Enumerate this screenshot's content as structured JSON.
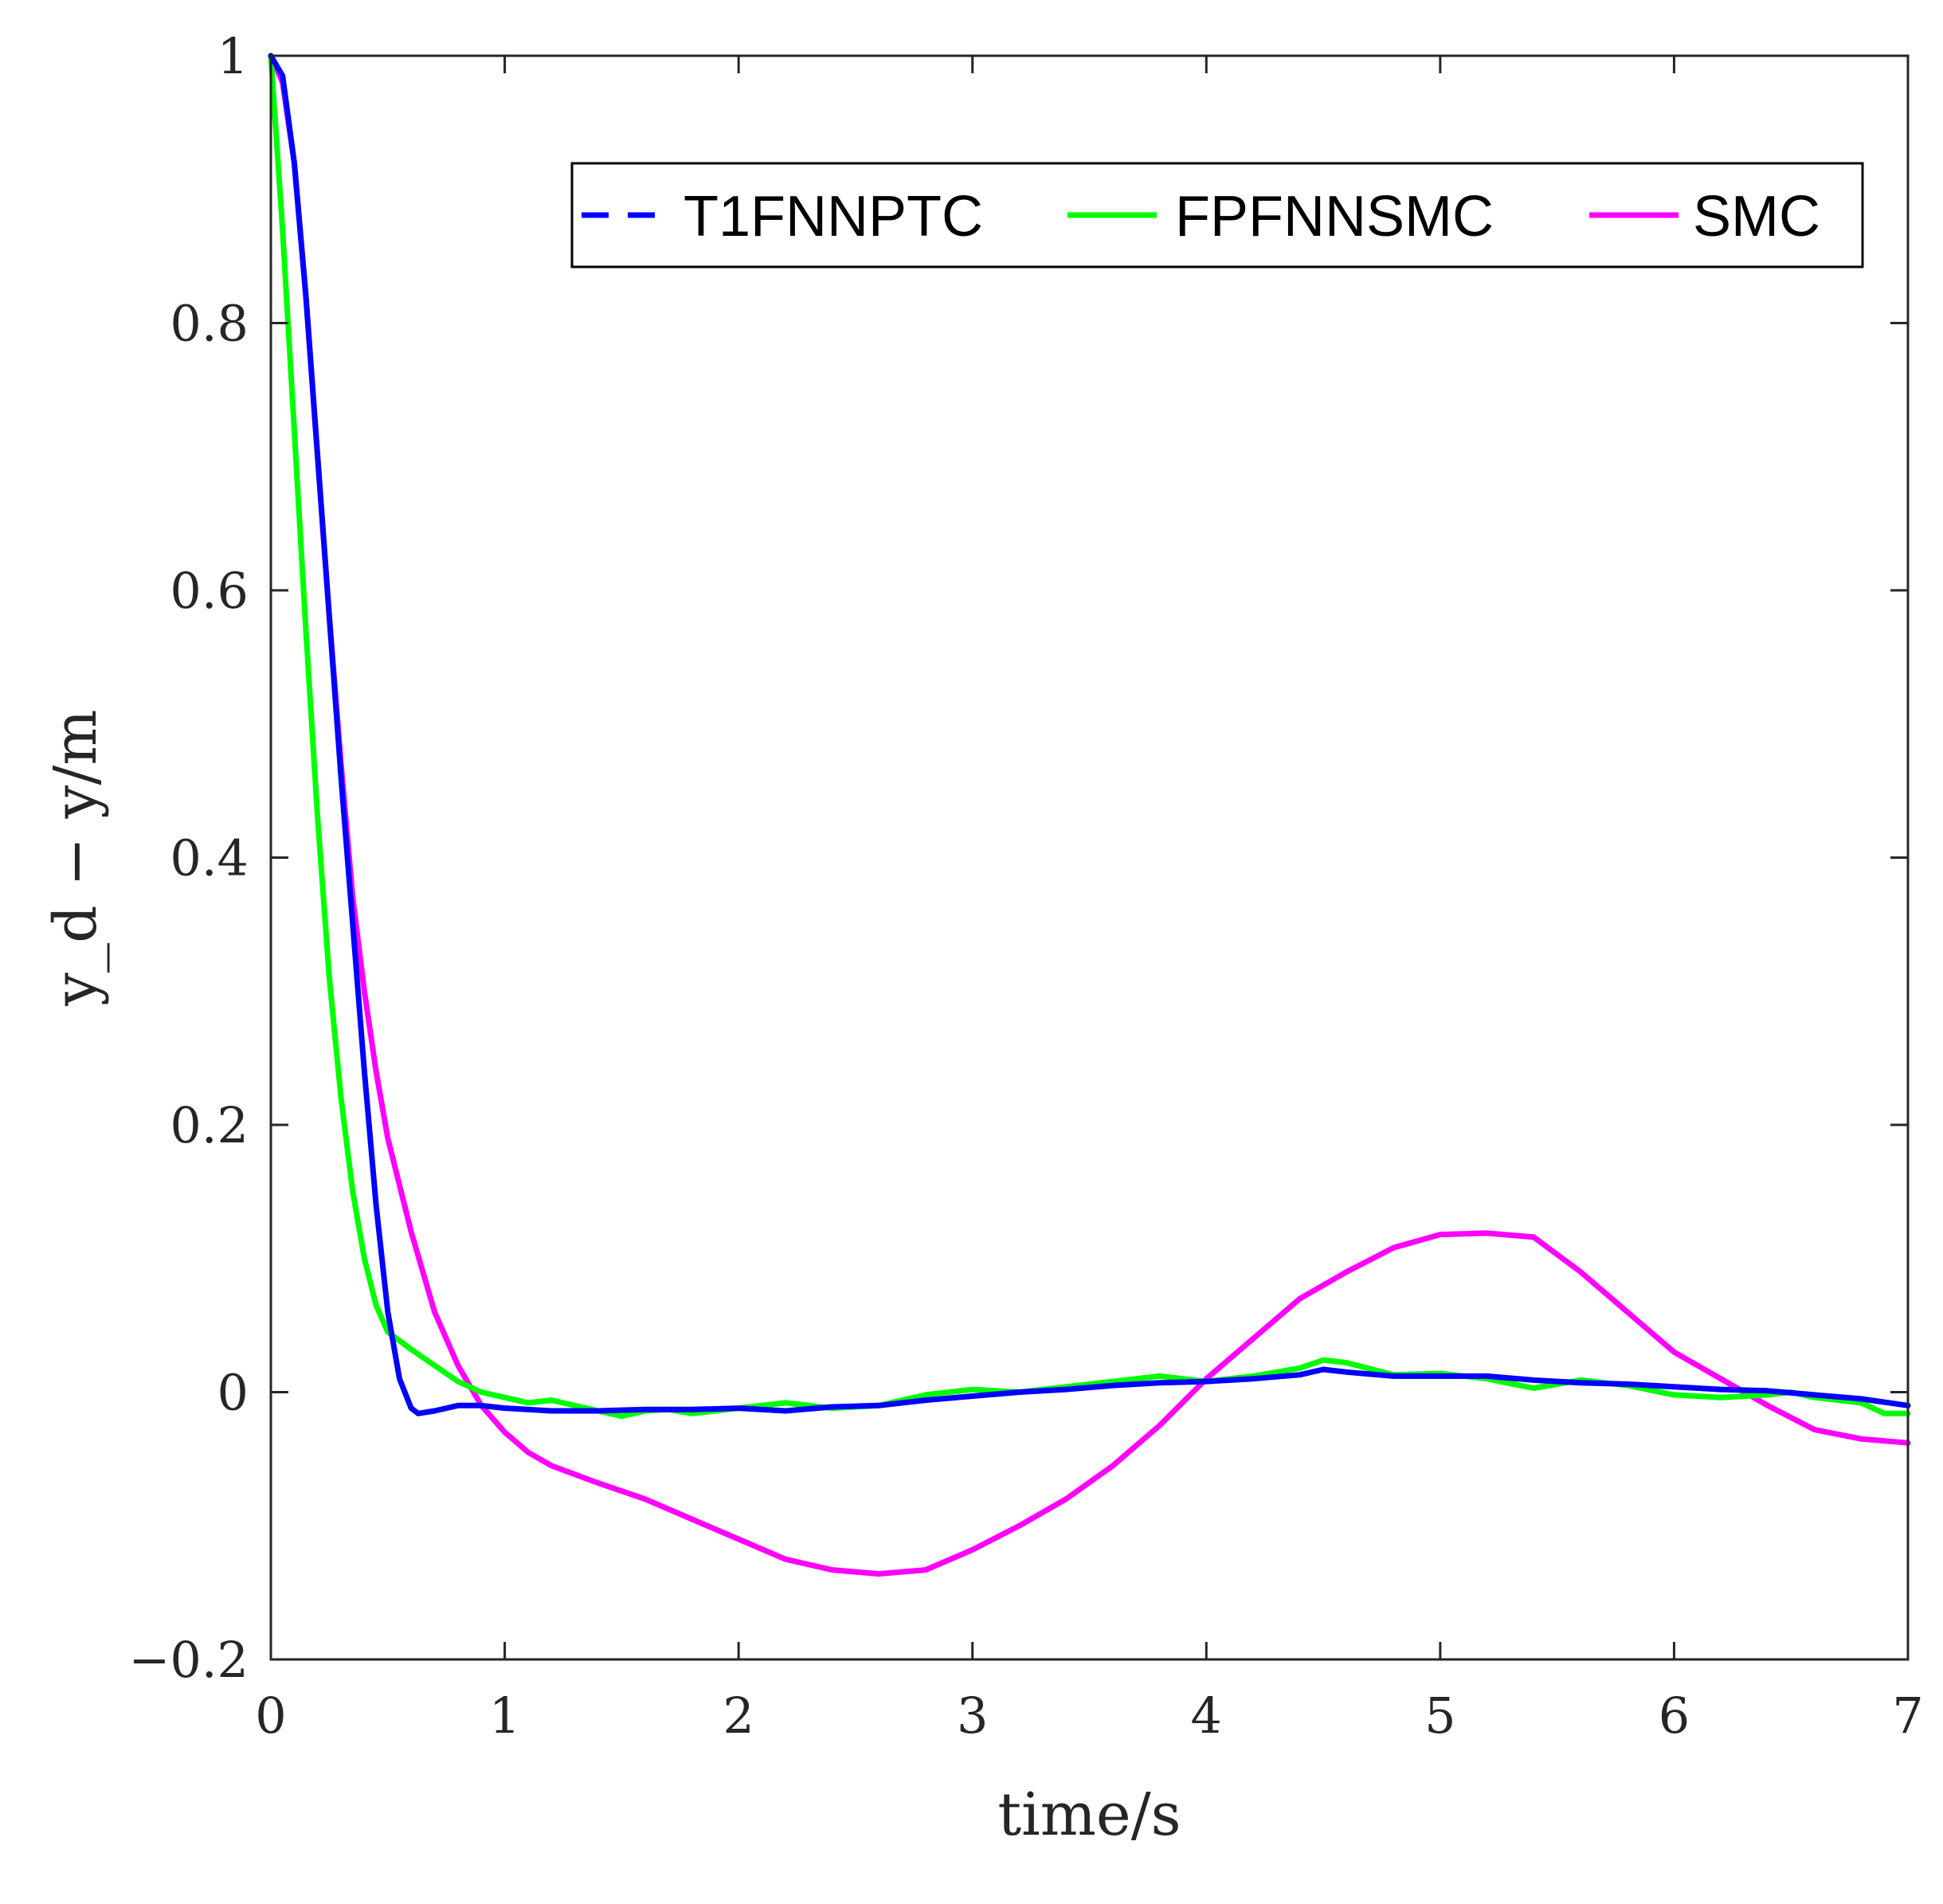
{
  "chart_data": {
    "type": "line",
    "xlabel": "time/s",
    "ylabel": "y_d − y/m",
    "xlim": [
      0,
      7
    ],
    "ylim": [
      -0.2,
      1
    ],
    "xticks": [
      0,
      1,
      2,
      3,
      4,
      5,
      6,
      7
    ],
    "yticks": [
      -0.2,
      0,
      0.2,
      0.4,
      0.6,
      0.8,
      1
    ],
    "xtick_labels": [
      "0",
      "1",
      "2",
      "3",
      "4",
      "5",
      "6",
      "7"
    ],
    "ytick_labels": [
      "−0.2",
      "0",
      "0.2",
      "0.4",
      "0.6",
      "0.8",
      "1"
    ],
    "grid": false,
    "legend_position": "top-right, horizontal",
    "series": [
      {
        "name": "T1FNNPTC",
        "color": "#0000ff",
        "line_style": "dashed",
        "points": [
          [
            0,
            1
          ],
          [
            0.05,
            0.985
          ],
          [
            0.1,
            0.92
          ],
          [
            0.15,
            0.82
          ],
          [
            0.2,
            0.7
          ],
          [
            0.25,
            0.58
          ],
          [
            0.3,
            0.46
          ],
          [
            0.35,
            0.35
          ],
          [
            0.4,
            0.24
          ],
          [
            0.45,
            0.14
          ],
          [
            0.5,
            0.06
          ],
          [
            0.55,
            0.01
          ],
          [
            0.6,
            -0.012
          ],
          [
            0.63,
            -0.016
          ],
          [
            0.7,
            -0.014
          ],
          [
            0.8,
            -0.01
          ],
          [
            0.9,
            -0.01
          ],
          [
            1.0,
            -0.012
          ],
          [
            1.2,
            -0.014
          ],
          [
            1.4,
            -0.014
          ],
          [
            1.6,
            -0.013
          ],
          [
            1.8,
            -0.013
          ],
          [
            2.0,
            -0.012
          ],
          [
            2.2,
            -0.014
          ],
          [
            2.4,
            -0.011
          ],
          [
            2.6,
            -0.01
          ],
          [
            2.8,
            -0.006
          ],
          [
            3.0,
            -0.003
          ],
          [
            3.2,
            0.0
          ],
          [
            3.4,
            0.002
          ],
          [
            3.6,
            0.005
          ],
          [
            3.8,
            0.007
          ],
          [
            4.0,
            0.008
          ],
          [
            4.2,
            0.01
          ],
          [
            4.4,
            0.013
          ],
          [
            4.5,
            0.017
          ],
          [
            4.6,
            0.015
          ],
          [
            4.8,
            0.012
          ],
          [
            5.0,
            0.012
          ],
          [
            5.2,
            0.012
          ],
          [
            5.4,
            0.009
          ],
          [
            5.6,
            0.007
          ],
          [
            5.8,
            0.006
          ],
          [
            6.0,
            0.004
          ],
          [
            6.2,
            0.002
          ],
          [
            6.4,
            0.001
          ],
          [
            6.6,
            -0.002
          ],
          [
            6.8,
            -0.005
          ],
          [
            7.0,
            -0.01
          ]
        ]
      },
      {
        "name": "FPFNNSMC",
        "color": "#00ff00",
        "line_style": "solid",
        "points": [
          [
            0,
            1
          ],
          [
            0.05,
            0.87
          ],
          [
            0.1,
            0.72
          ],
          [
            0.15,
            0.57
          ],
          [
            0.2,
            0.43
          ],
          [
            0.25,
            0.31
          ],
          [
            0.3,
            0.22
          ],
          [
            0.35,
            0.15
          ],
          [
            0.4,
            0.1
          ],
          [
            0.45,
            0.065
          ],
          [
            0.5,
            0.045
          ],
          [
            0.6,
            0.032
          ],
          [
            0.7,
            0.02
          ],
          [
            0.8,
            0.008
          ],
          [
            0.9,
            0.0
          ],
          [
            1.0,
            -0.004
          ],
          [
            1.1,
            -0.008
          ],
          [
            1.2,
            -0.006
          ],
          [
            1.3,
            -0.01
          ],
          [
            1.4,
            -0.014
          ],
          [
            1.5,
            -0.018
          ],
          [
            1.6,
            -0.014
          ],
          [
            1.7,
            -0.013
          ],
          [
            1.8,
            -0.016
          ],
          [
            2.0,
            -0.012
          ],
          [
            2.2,
            -0.008
          ],
          [
            2.4,
            -0.012
          ],
          [
            2.6,
            -0.01
          ],
          [
            2.8,
            -0.002
          ],
          [
            3.0,
            0.002
          ],
          [
            3.2,
            0.0
          ],
          [
            3.4,
            0.004
          ],
          [
            3.6,
            0.008
          ],
          [
            3.8,
            0.012
          ],
          [
            4.0,
            0.008
          ],
          [
            4.2,
            0.012
          ],
          [
            4.4,
            0.018
          ],
          [
            4.5,
            0.024
          ],
          [
            4.6,
            0.022
          ],
          [
            4.8,
            0.013
          ],
          [
            5.0,
            0.014
          ],
          [
            5.2,
            0.01
          ],
          [
            5.4,
            0.003
          ],
          [
            5.6,
            0.009
          ],
          [
            5.8,
            0.005
          ],
          [
            6.0,
            -0.002
          ],
          [
            6.2,
            -0.004
          ],
          [
            6.4,
            -0.002
          ],
          [
            6.5,
            0.0
          ],
          [
            6.6,
            -0.004
          ],
          [
            6.8,
            -0.008
          ],
          [
            6.9,
            -0.016
          ],
          [
            7.0,
            -0.016
          ]
        ]
      },
      {
        "name": "SMC",
        "color": "#ff00ff",
        "line_style": "solid",
        "points": [
          [
            0,
            1
          ],
          [
            0.05,
            0.98
          ],
          [
            0.1,
            0.92
          ],
          [
            0.15,
            0.82
          ],
          [
            0.2,
            0.7
          ],
          [
            0.25,
            0.58
          ],
          [
            0.3,
            0.47
          ],
          [
            0.35,
            0.37
          ],
          [
            0.4,
            0.3
          ],
          [
            0.45,
            0.24
          ],
          [
            0.5,
            0.19
          ],
          [
            0.6,
            0.12
          ],
          [
            0.7,
            0.06
          ],
          [
            0.8,
            0.02
          ],
          [
            0.9,
            -0.01
          ],
          [
            1.0,
            -0.03
          ],
          [
            1.1,
            -0.045
          ],
          [
            1.2,
            -0.055
          ],
          [
            1.4,
            -0.068
          ],
          [
            1.6,
            -0.08
          ],
          [
            1.8,
            -0.095
          ],
          [
            2.0,
            -0.11
          ],
          [
            2.2,
            -0.125
          ],
          [
            2.4,
            -0.133
          ],
          [
            2.6,
            -0.136
          ],
          [
            2.8,
            -0.133
          ],
          [
            3.0,
            -0.118
          ],
          [
            3.2,
            -0.1
          ],
          [
            3.4,
            -0.08
          ],
          [
            3.6,
            -0.055
          ],
          [
            3.8,
            -0.025
          ],
          [
            4.0,
            0.01
          ],
          [
            4.2,
            0.04
          ],
          [
            4.4,
            0.07
          ],
          [
            4.6,
            0.09
          ],
          [
            4.8,
            0.108
          ],
          [
            5.0,
            0.118
          ],
          [
            5.2,
            0.119
          ],
          [
            5.4,
            0.116
          ],
          [
            5.6,
            0.09
          ],
          [
            5.8,
            0.06
          ],
          [
            6.0,
            0.03
          ],
          [
            6.2,
            0.01
          ],
          [
            6.4,
            -0.01
          ],
          [
            6.6,
            -0.028
          ],
          [
            6.8,
            -0.035
          ],
          [
            7.0,
            -0.038
          ]
        ]
      }
    ]
  }
}
